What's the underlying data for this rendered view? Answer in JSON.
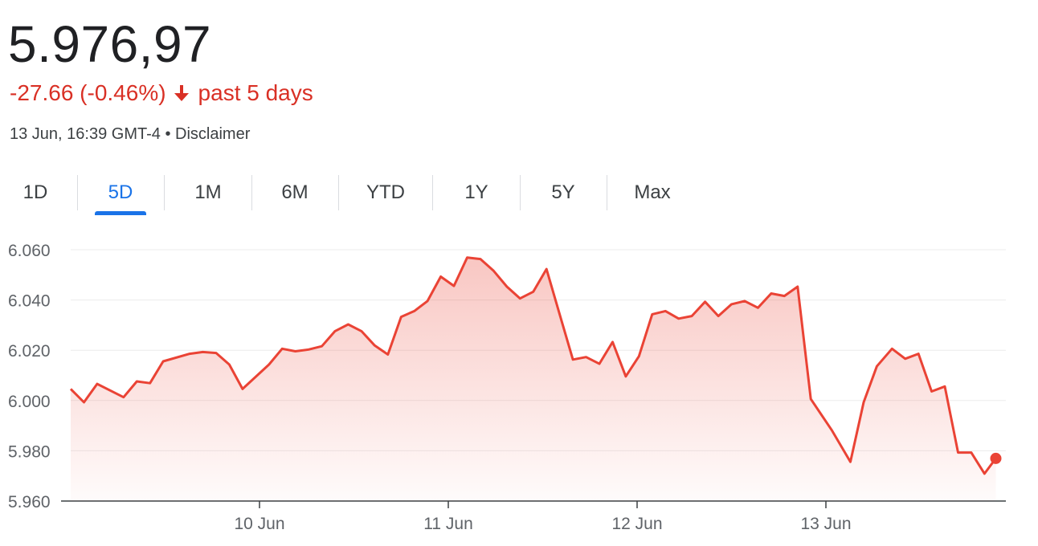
{
  "header": {
    "price": "5.976,97",
    "change": "-27.66 (-0.46%)",
    "period": "past 5 days",
    "timestamp": "13 Jun, 16:39 GMT-4",
    "separator": "•",
    "disclaimer": "Disclaimer",
    "change_color": "#d93025"
  },
  "tabs": [
    {
      "label": "1D",
      "active": false
    },
    {
      "label": "5D",
      "active": true
    },
    {
      "label": "1M",
      "active": false
    },
    {
      "label": "6M",
      "active": false
    },
    {
      "label": "YTD",
      "active": false
    },
    {
      "label": "1Y",
      "active": false
    },
    {
      "label": "5Y",
      "active": false
    },
    {
      "label": "Max",
      "active": false
    }
  ],
  "chart_data": {
    "type": "area",
    "title": "",
    "xlabel": "",
    "ylabel": "",
    "ylim": [
      5960,
      6060
    ],
    "y_ticks": [
      6060,
      6040,
      6020,
      6000,
      5980,
      5960
    ],
    "y_tick_labels": [
      "6.060",
      "6.040",
      "6.020",
      "6.000",
      "5.980",
      "5.960"
    ],
    "x_range": [
      0,
      5
    ],
    "x_ticks": [
      1,
      2,
      3,
      4
    ],
    "x_tick_labels": [
      "10 Jun",
      "11 Jun",
      "12 Jun",
      "13 Jun"
    ],
    "grid": true,
    "line_color": "#ea4335",
    "fill_color": "#ea4335",
    "series": [
      {
        "values": [
          [
            0.0,
            6004.6
          ],
          [
            0.07,
            5999.3
          ],
          [
            0.14,
            6006.6
          ],
          [
            0.28,
            6001.3
          ],
          [
            0.35,
            6007.6
          ],
          [
            0.42,
            6006.9
          ],
          [
            0.49,
            6015.6
          ],
          [
            0.63,
            6018.6
          ],
          [
            0.7,
            6019.3
          ],
          [
            0.77,
            6018.9
          ],
          [
            0.84,
            6014.3
          ],
          [
            0.91,
            6004.6
          ],
          [
            1.05,
            6014.3
          ],
          [
            1.12,
            6020.6
          ],
          [
            1.19,
            6019.6
          ],
          [
            1.26,
            6020.3
          ],
          [
            1.33,
            6021.6
          ],
          [
            1.4,
            6027.6
          ],
          [
            1.47,
            6030.3
          ],
          [
            1.54,
            6027.6
          ],
          [
            1.61,
            6021.9
          ],
          [
            1.68,
            6018.3
          ],
          [
            1.75,
            6033.3
          ],
          [
            1.82,
            6035.6
          ],
          [
            1.89,
            6039.6
          ],
          [
            1.96,
            6049.3
          ],
          [
            2.03,
            6045.6
          ],
          [
            2.1,
            6056.9
          ],
          [
            2.17,
            6056.3
          ],
          [
            2.24,
            6051.6
          ],
          [
            2.31,
            6045.3
          ],
          [
            2.38,
            6040.6
          ],
          [
            2.45,
            6043.3
          ],
          [
            2.52,
            6052.3
          ],
          [
            2.59,
            6034.3
          ],
          [
            2.66,
            6016.3
          ],
          [
            2.73,
            6017.3
          ],
          [
            2.8,
            6014.6
          ],
          [
            2.87,
            6023.3
          ],
          [
            2.94,
            6009.6
          ],
          [
            3.01,
            6017.6
          ],
          [
            3.08,
            6034.3
          ],
          [
            3.15,
            6035.6
          ],
          [
            3.22,
            6032.6
          ],
          [
            3.29,
            6033.6
          ],
          [
            3.36,
            6039.3
          ],
          [
            3.43,
            6033.6
          ],
          [
            3.5,
            6038.3
          ],
          [
            3.57,
            6039.6
          ],
          [
            3.64,
            6036.9
          ],
          [
            3.71,
            6042.6
          ],
          [
            3.78,
            6041.6
          ],
          [
            3.85,
            6045.3
          ],
          [
            3.92,
            6000.6
          ],
          [
            4.03,
            5988.3
          ],
          [
            4.13,
            5975.6
          ],
          [
            4.2,
            5999.3
          ],
          [
            4.27,
            6013.6
          ],
          [
            4.35,
            6020.6
          ],
          [
            4.42,
            6016.6
          ],
          [
            4.49,
            6018.6
          ],
          [
            4.56,
            6003.6
          ],
          [
            4.63,
            6005.6
          ],
          [
            4.7,
            5979.3
          ],
          [
            4.77,
            5979.3
          ],
          [
            4.84,
            5970.9
          ],
          [
            4.9,
            5976.97
          ]
        ]
      }
    ],
    "last_point_marker": true
  }
}
